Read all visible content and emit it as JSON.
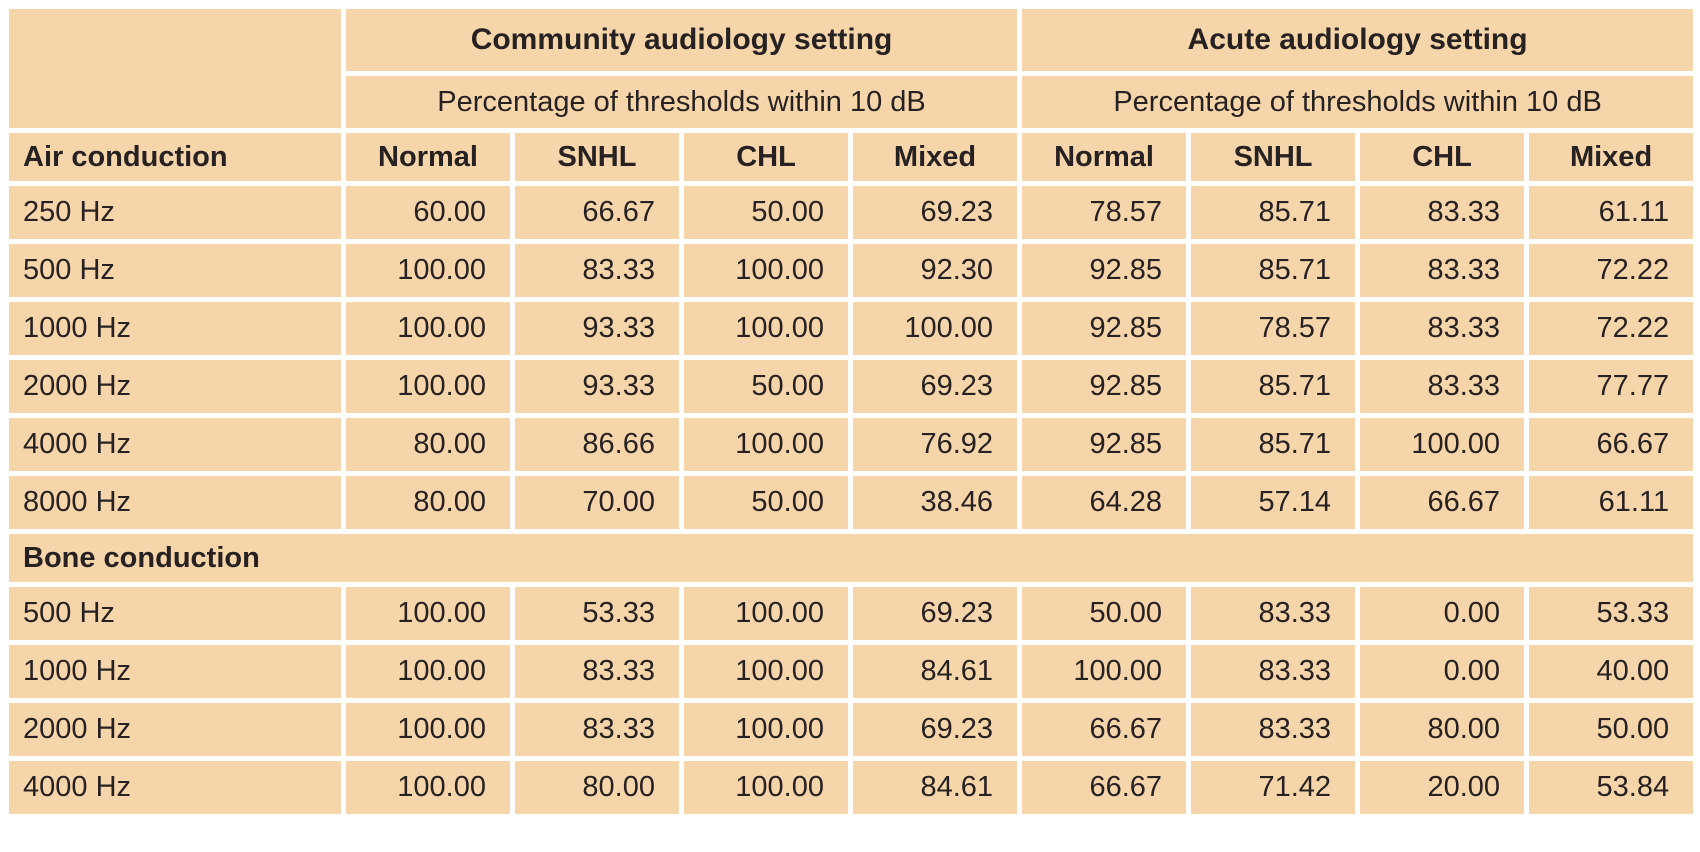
{
  "table": {
    "colors": {
      "cell_bg": "#f7d5aa",
      "border": "#ffffff",
      "text": "#272221",
      "page_bg": "#ffffff"
    },
    "groups": [
      {
        "label": "Community audiology setting",
        "subheader": "Percentage of thresholds within 10 dB"
      },
      {
        "label": "Acute audiology setting",
        "subheader": "Percentage of thresholds within 10 dB"
      }
    ],
    "column_headers": [
      "Normal",
      "SNHL",
      "CHL",
      "Mixed"
    ],
    "sections": [
      {
        "label": "Air conduction",
        "rows": [
          {
            "label": "250 Hz",
            "community": [
              "60.00",
              "66.67",
              "50.00",
              "69.23"
            ],
            "acute": [
              "78.57",
              "85.71",
              "83.33",
              "61.11"
            ]
          },
          {
            "label": "500 Hz",
            "community": [
              "100.00",
              "83.33",
              "100.00",
              "92.30"
            ],
            "acute": [
              "92.85",
              "85.71",
              "83.33",
              "72.22"
            ]
          },
          {
            "label": "1000 Hz",
            "community": [
              "100.00",
              "93.33",
              "100.00",
              "100.00"
            ],
            "acute": [
              "92.85",
              "78.57",
              "83.33",
              "72.22"
            ]
          },
          {
            "label": "2000 Hz",
            "community": [
              "100.00",
              "93.33",
              "50.00",
              "69.23"
            ],
            "acute": [
              "92.85",
              "85.71",
              "83.33",
              "77.77"
            ]
          },
          {
            "label": "4000 Hz",
            "community": [
              "80.00",
              "86.66",
              "100.00",
              "76.92"
            ],
            "acute": [
              "92.85",
              "85.71",
              "100.00",
              "66.67"
            ]
          },
          {
            "label": "8000 Hz",
            "community": [
              "80.00",
              "70.00",
              "50.00",
              "38.46"
            ],
            "acute": [
              "64.28",
              "57.14",
              "66.67",
              "61.11"
            ]
          }
        ]
      },
      {
        "label": "Bone conduction",
        "rows": [
          {
            "label": "500 Hz",
            "community": [
              "100.00",
              "53.33",
              "100.00",
              "69.23"
            ],
            "acute": [
              "50.00",
              "83.33",
              "0.00",
              "53.33"
            ]
          },
          {
            "label": "1000 Hz",
            "community": [
              "100.00",
              "83.33",
              "100.00",
              "84.61"
            ],
            "acute": [
              "100.00",
              "83.33",
              "0.00",
              "40.00"
            ]
          },
          {
            "label": "2000 Hz",
            "community": [
              "100.00",
              "83.33",
              "100.00",
              "69.23"
            ],
            "acute": [
              "66.67",
              "83.33",
              "80.00",
              "50.00"
            ]
          },
          {
            "label": "4000 Hz",
            "community": [
              "100.00",
              "80.00",
              "100.00",
              "84.61"
            ],
            "acute": [
              "66.67",
              "71.42",
              "20.00",
              "53.84"
            ]
          }
        ]
      }
    ]
  }
}
